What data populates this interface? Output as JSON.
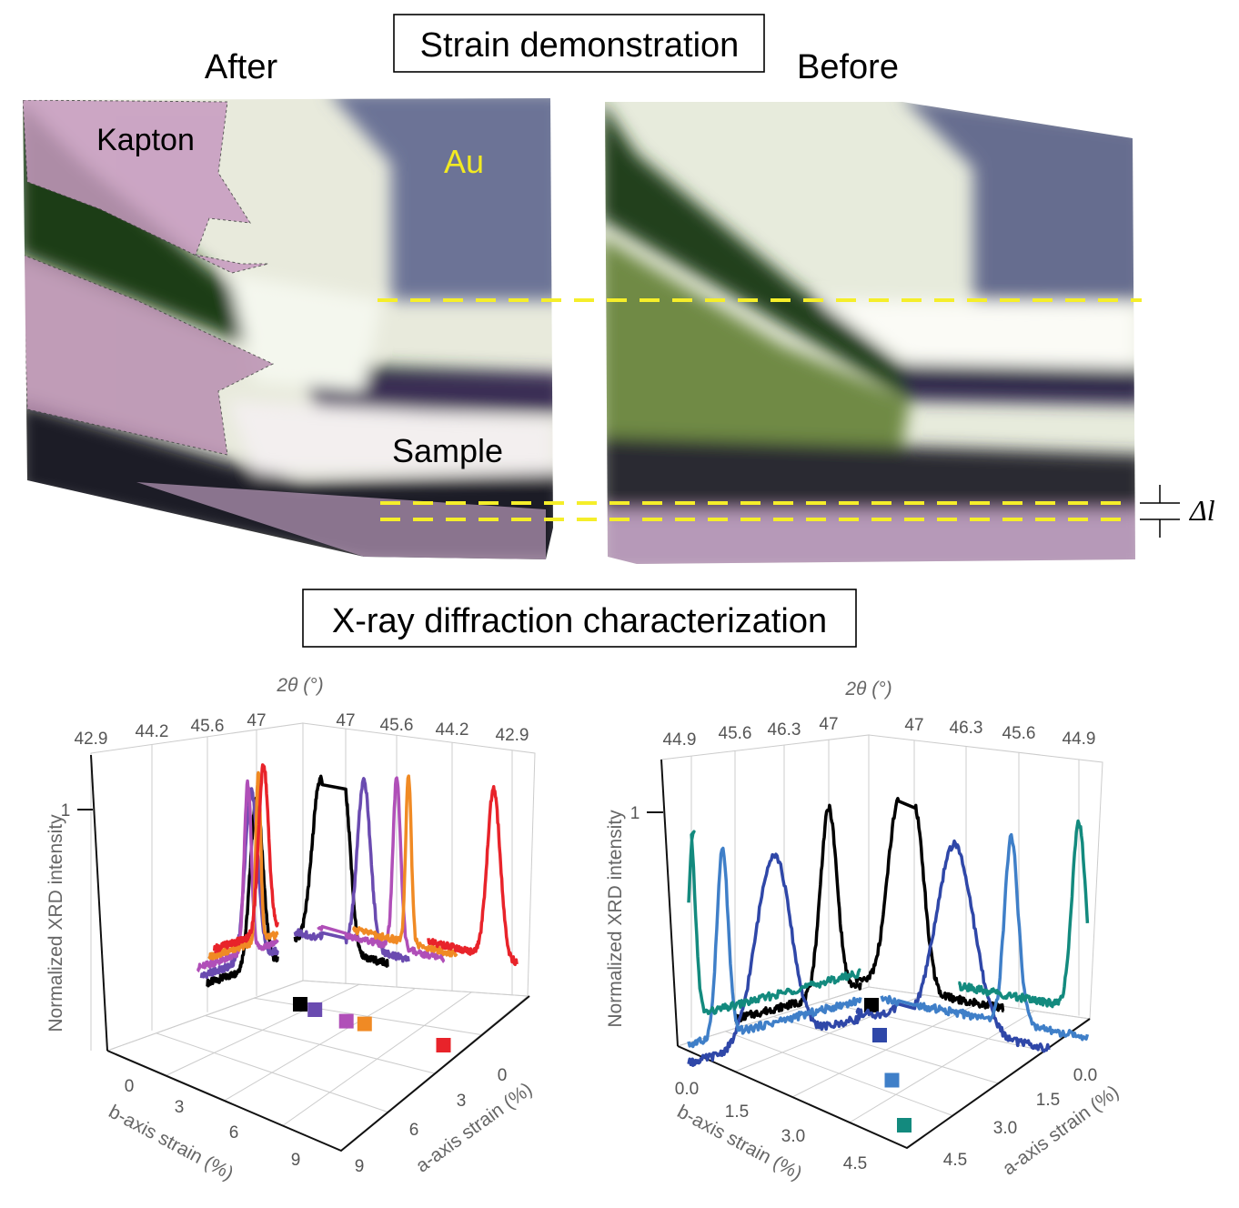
{
  "figure": {
    "title_top": "Strain demonstration",
    "after_label": "After",
    "before_label": "Before",
    "kapton_label": "Kapton",
    "au_label": "Au",
    "sample_label": "Sample",
    "delta_l_label": "Δl",
    "title_bottom": "X-ray diffraction characterization"
  },
  "colors": {
    "dashed_marker": "#f5ee2a",
    "au_text": "#f2ea22",
    "kapton_overlay": "#c79ac0",
    "au_region": "#6c7396",
    "green_wedge": "#1f3d17"
  },
  "chart_data": [
    {
      "type": "line",
      "x_label": "2θ (°)",
      "z_label": "Normalized XRD intensity",
      "z_tick": "1",
      "b_wall_ticks": [
        "42.9",
        "44.2",
        "45.6",
        "47"
      ],
      "a_wall_ticks": [
        "47",
        "45.6",
        "44.2",
        "42.9"
      ],
      "b_axis_label": "b-axis strain (%)",
      "b_ticks": [
        "0",
        "3",
        "6",
        "9"
      ],
      "a_axis_label": "a-axis strain (%)",
      "a_ticks": [
        "0",
        "3",
        "6",
        "9"
      ],
      "series": [
        {
          "color": "#000000",
          "b_wall_peak_2theta": 47.0,
          "a_wall_peak_2theta": 47.05,
          "peak_width": 0.18,
          "a_strain": 0.0,
          "b_strain": 0.0
        },
        {
          "color": "#6a4bb0",
          "b_wall_peak_2theta": 46.85,
          "a_wall_peak_2theta": 46.5,
          "peak_width": 0.18,
          "a_strain": 0.8,
          "b_strain": 0.1
        },
        {
          "color": "#b04fb8",
          "b_wall_peak_2theta": 46.75,
          "a_wall_peak_2theta": 45.6,
          "peak_width": 0.1,
          "a_strain": 2.5,
          "b_strain": 0.3
        },
        {
          "color": "#f08a24",
          "b_wall_peak_2theta": 47.05,
          "a_wall_peak_2theta": 45.3,
          "peak_width": 0.07,
          "a_strain": 3.4,
          "b_strain": 0.1
        },
        {
          "color": "#e8232a",
          "b_wall_peak_2theta": 47.2,
          "a_wall_peak_2theta": 43.3,
          "peak_width": 0.14,
          "a_strain": 7.5,
          "b_strain": 0.0
        }
      ]
    },
    {
      "type": "line",
      "x_label": "2θ (°)",
      "z_label": "Normalized XRD intensity",
      "z_tick": "1",
      "b_wall_ticks": [
        "44.9",
        "45.6",
        "46.3",
        "47"
      ],
      "a_wall_ticks": [
        "47",
        "46.3",
        "45.6",
        "44.9"
      ],
      "b_axis_label": "b-axis strain (%)",
      "b_ticks": [
        "0.0",
        "1.5",
        "3.0",
        "4.5"
      ],
      "a_axis_label": "a-axis strain (%)",
      "a_ticks": [
        "0.0",
        "1.5",
        "3.0",
        "4.5"
      ],
      "series": [
        {
          "color": "#000000",
          "b_wall_peak_2theta": 47.0,
          "a_wall_peak_2theta": 47.0,
          "peak_width": 0.13,
          "a_strain": 0.0,
          "b_strain": 0.0
        },
        {
          "color": "#2f47a8",
          "b_wall_peak_2theta": 46.15,
          "a_wall_peak_2theta": 46.45,
          "peak_width": 0.25,
          "a_strain": 1.0,
          "b_strain": 1.0
        },
        {
          "color": "#3f7fc8",
          "b_wall_peak_2theta": 45.4,
          "a_wall_peak_2theta": 45.7,
          "peak_width": 0.09,
          "a_strain": 2.5,
          "b_strain": 2.5
        },
        {
          "color": "#138a7e",
          "b_wall_peak_2theta": 44.88,
          "a_wall_peak_2theta": 44.9,
          "peak_width": 0.08,
          "a_strain": 4.0,
          "b_strain": 4.0
        }
      ]
    }
  ]
}
